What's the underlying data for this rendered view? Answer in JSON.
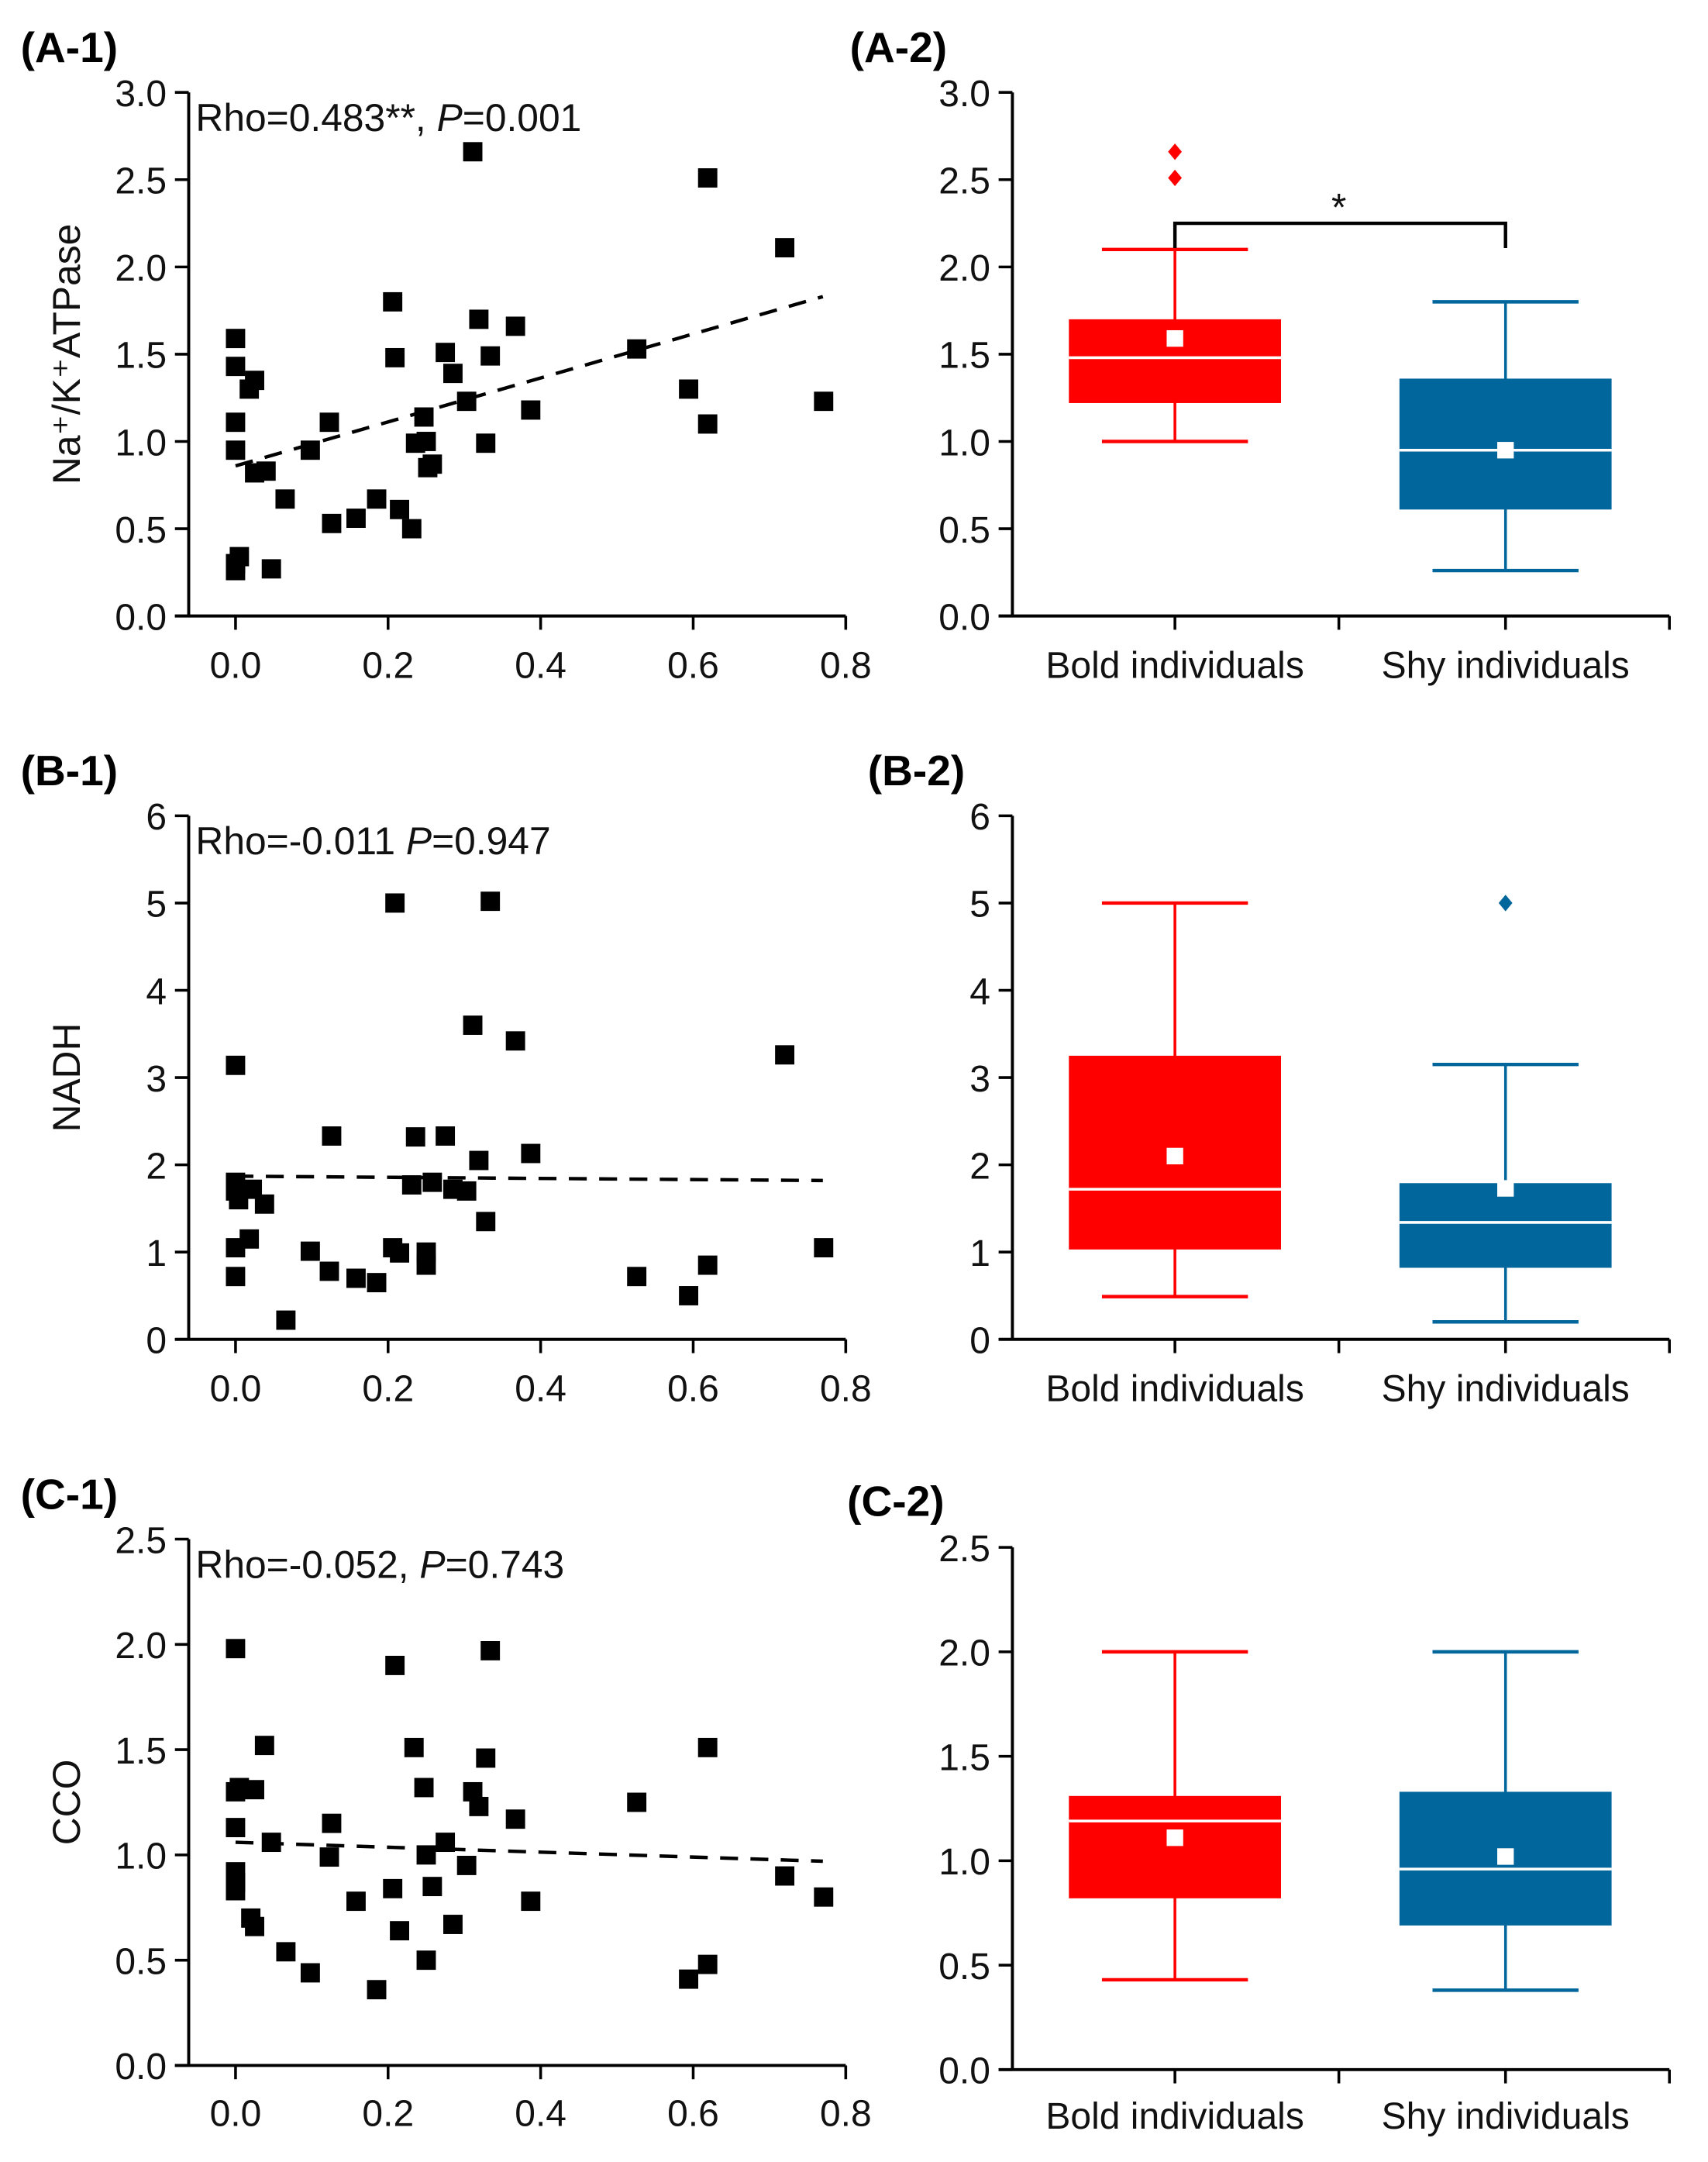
{
  "chart_data": [
    {
      "id": "A1",
      "type": "scatter",
      "panel_label": "(A-1)",
      "annotation": {
        "pre": "Rho=0.483**, ",
        "p": "P",
        "post": "=0.001"
      },
      "ylabel": "Na⁺/K⁺ATPase",
      "xlabel": "",
      "xlim": [
        0,
        0.8
      ],
      "ylim": [
        0,
        3.0
      ],
      "xticks": [
        "0.0",
        "0.2",
        "0.4",
        "0.6",
        "0.8"
      ],
      "yticks": [
        "0.0",
        "0.5",
        "1.0",
        "1.5",
        "2.0",
        "2.5",
        "3.0"
      ],
      "points": [
        [
          0,
          1.59
        ],
        [
          0,
          1.43
        ],
        [
          0.025,
          1.35
        ],
        [
          0.018,
          1.3
        ],
        [
          0,
          1.11
        ],
        [
          0,
          0.95
        ],
        [
          0.025,
          0.82
        ],
        [
          0.04,
          0.83
        ],
        [
          0.065,
          0.67
        ],
        [
          0.098,
          0.95
        ],
        [
          0.123,
          1.11
        ],
        [
          0.126,
          0.53
        ],
        [
          0.158,
          0.56
        ],
        [
          0.185,
          0.67
        ],
        [
          0.206,
          1.8
        ],
        [
          0.209,
          1.48
        ],
        [
          0.215,
          0.61
        ],
        [
          0.231,
          0.5
        ],
        [
          0.236,
          0.99
        ],
        [
          0.247,
          1.14
        ],
        [
          0.25,
          1.0
        ],
        [
          0.252,
          0.85
        ],
        [
          0.258,
          0.87
        ],
        [
          0.275,
          1.51
        ],
        [
          0.285,
          1.39
        ],
        [
          0.303,
          1.23
        ],
        [
          0.311,
          2.66
        ],
        [
          0.319,
          1.7
        ],
        [
          0.328,
          0.99
        ],
        [
          0.334,
          1.49
        ],
        [
          0.367,
          1.66
        ],
        [
          0.387,
          1.18
        ],
        [
          0,
          0.3
        ],
        [
          0.005,
          0.34
        ],
        [
          0,
          0.26
        ],
        [
          0.047,
          0.27
        ],
        [
          0.526,
          1.53
        ],
        [
          0.594,
          1.3
        ],
        [
          0.619,
          2.51
        ],
        [
          0.619,
          1.1
        ],
        [
          0.72,
          2.11
        ],
        [
          0.771,
          1.23
        ]
      ],
      "trend": [
        [
          0,
          0.86
        ],
        [
          0.77,
          1.83
        ]
      ]
    },
    {
      "id": "A2",
      "type": "box",
      "panel_label": "(A-2)",
      "ylim": [
        0,
        3.0
      ],
      "yticks": [
        "0.0",
        "0.5",
        "1.0",
        "1.5",
        "2.0",
        "2.5",
        "3.0"
      ],
      "categories": [
        "Bold individuals",
        "Shy individuals"
      ],
      "boxes": [
        {
          "name": "Bold individuals",
          "color": "#ff0000",
          "whisker_low": 1.0,
          "q1": 1.22,
          "median": 1.48,
          "q3": 1.7,
          "whisker_high": 2.1,
          "mean": 1.59,
          "outliers": [
            2.51,
            2.66
          ]
        },
        {
          "name": "Shy individuals",
          "color": "#01669b",
          "whisker_low": 0.26,
          "q1": 0.61,
          "median": 0.95,
          "q3": 1.36,
          "whisker_high": 1.8,
          "mean": 0.95,
          "outliers": []
        }
      ],
      "significance": {
        "label": "*",
        "level": 2.25
      }
    },
    {
      "id": "B1",
      "type": "scatter",
      "panel_label": "(B-1)",
      "annotation": {
        "pre": "Rho=-0.011 ",
        "p": "P",
        "post": "=0.947"
      },
      "ylabel": "NADH",
      "xlabel": "",
      "xlim": [
        0,
        0.8
      ],
      "ylim": [
        0,
        6
      ],
      "xticks": [
        "0.0",
        "0.2",
        "0.4",
        "0.6",
        "0.8"
      ],
      "yticks": [
        "0",
        "1",
        "2",
        "3",
        "4",
        "5",
        "6"
      ],
      "points": [
        [
          0,
          3.14
        ],
        [
          0,
          1.8
        ],
        [
          0,
          1.7
        ],
        [
          0.004,
          1.6
        ],
        [
          0,
          1.05
        ],
        [
          0,
          0.72
        ],
        [
          0.022,
          1.72
        ],
        [
          0.018,
          1.15
        ],
        [
          0.038,
          1.55
        ],
        [
          0.066,
          0.22
        ],
        [
          0.098,
          1.01
        ],
        [
          0.126,
          2.33
        ],
        [
          0.123,
          0.78
        ],
        [
          0.158,
          0.7
        ],
        [
          0.185,
          0.65
        ],
        [
          0.209,
          5.0
        ],
        [
          0.206,
          1.05
        ],
        [
          0.215,
          0.99
        ],
        [
          0.231,
          1.77
        ],
        [
          0.236,
          2.32
        ],
        [
          0.25,
          1.0
        ],
        [
          0.25,
          0.85
        ],
        [
          0.258,
          1.8
        ],
        [
          0.275,
          2.33
        ],
        [
          0.285,
          1.72
        ],
        [
          0.303,
          1.7
        ],
        [
          0.311,
          3.6
        ],
        [
          0.319,
          2.05
        ],
        [
          0.328,
          1.35
        ],
        [
          0.334,
          5.02
        ],
        [
          0.367,
          3.42
        ],
        [
          0.387,
          2.13
        ],
        [
          0.526,
          0.72
        ],
        [
          0.594,
          0.5
        ],
        [
          0.619,
          0.85
        ],
        [
          0.72,
          3.26
        ],
        [
          0.771,
          1.05
        ]
      ],
      "trend": [
        [
          0,
          1.87
        ],
        [
          0.77,
          1.82
        ]
      ]
    },
    {
      "id": "B2",
      "type": "box",
      "panel_label": "(B-2)",
      "ylim": [
        0,
        6
      ],
      "yticks": [
        "0",
        "1",
        "2",
        "3",
        "4",
        "5",
        "6"
      ],
      "categories": [
        "Bold individuals",
        "Shy individuals"
      ],
      "boxes": [
        {
          "name": "Bold individuals",
          "color": "#ff0000",
          "whisker_low": 0.49,
          "q1": 1.03,
          "median": 1.72,
          "q3": 3.25,
          "whisker_high": 5.0,
          "mean": 2.1,
          "outliers": []
        },
        {
          "name": "Shy individuals",
          "color": "#01669b",
          "whisker_low": 0.2,
          "q1": 0.82,
          "median": 1.34,
          "q3": 1.79,
          "whisker_high": 3.15,
          "mean": 1.73,
          "outliers": [
            5.0
          ]
        }
      ]
    },
    {
      "id": "C1",
      "type": "scatter",
      "panel_label": "(C-1)",
      "annotation": {
        "pre": "Rho=-0.052, ",
        "p": "P",
        "post": "=0.743"
      },
      "ylabel": "CCO",
      "xlabel": "",
      "xlim": [
        0,
        0.8
      ],
      "ylim": [
        0,
        2.5
      ],
      "xticks": [
        "0.0",
        "0.2",
        "0.4",
        "0.6",
        "0.8"
      ],
      "yticks": [
        "0.0",
        "0.5",
        "1.0",
        "1.5",
        "2.0",
        "2.5"
      ],
      "points": [
        [
          0,
          1.98
        ],
        [
          0,
          1.3
        ],
        [
          0.005,
          1.32
        ],
        [
          0.025,
          1.31
        ],
        [
          0,
          1.13
        ],
        [
          0,
          0.92
        ],
        [
          0,
          0.87
        ],
        [
          0,
          0.83
        ],
        [
          0.02,
          0.7
        ],
        [
          0.025,
          0.66
        ],
        [
          0.038,
          1.52
        ],
        [
          0.047,
          1.06
        ],
        [
          0.066,
          0.54
        ],
        [
          0.098,
          0.44
        ],
        [
          0.126,
          1.15
        ],
        [
          0.123,
          0.99
        ],
        [
          0.158,
          0.78
        ],
        [
          0.185,
          0.36
        ],
        [
          0.209,
          1.9
        ],
        [
          0.206,
          0.84
        ],
        [
          0.215,
          0.64
        ],
        [
          0.234,
          1.51
        ],
        [
          0.247,
          1.32
        ],
        [
          0.25,
          1.0
        ],
        [
          0.25,
          0.5
        ],
        [
          0.258,
          0.85
        ],
        [
          0.275,
          1.06
        ],
        [
          0.285,
          0.67
        ],
        [
          0.303,
          0.95
        ],
        [
          0.311,
          1.3
        ],
        [
          0.319,
          1.23
        ],
        [
          0.328,
          1.46
        ],
        [
          0.334,
          1.97
        ],
        [
          0.367,
          1.17
        ],
        [
          0.387,
          0.78
        ],
        [
          0.526,
          1.25
        ],
        [
          0.594,
          0.41
        ],
        [
          0.619,
          0.48
        ],
        [
          0.619,
          1.51
        ],
        [
          0.72,
          0.9
        ],
        [
          0.771,
          0.8
        ]
      ],
      "trend": [
        [
          0,
          1.06
        ],
        [
          0.77,
          0.97
        ]
      ]
    },
    {
      "id": "C2",
      "type": "box",
      "panel_label": "(C-2)",
      "ylim": [
        0,
        2.5
      ],
      "yticks": [
        "0.0",
        "0.5",
        "1.0",
        "1.5",
        "2.0",
        "2.5"
      ],
      "categories": [
        "Bold individuals",
        "Shy individuals"
      ],
      "boxes": [
        {
          "name": "Bold individuals",
          "color": "#ff0000",
          "whisker_low": 0.43,
          "q1": 0.82,
          "median": 1.19,
          "q3": 1.31,
          "whisker_high": 2.0,
          "mean": 1.11,
          "outliers": []
        },
        {
          "name": "Shy individuals",
          "color": "#01669b",
          "whisker_low": 0.38,
          "q1": 0.69,
          "median": 0.96,
          "q3": 1.33,
          "whisker_high": 2.0,
          "mean": 1.02,
          "outliers": []
        }
      ]
    }
  ]
}
